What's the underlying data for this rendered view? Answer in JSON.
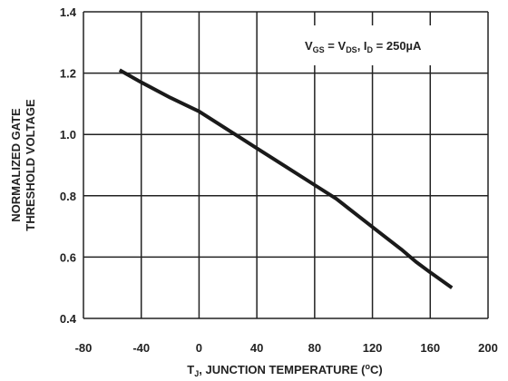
{
  "chart_data": {
    "type": "line",
    "grid": true,
    "xlim": [
      -80,
      200
    ],
    "ylim": [
      0.4,
      1.4
    ],
    "x_ticks": [
      -80,
      -40,
      0,
      40,
      80,
      120,
      160,
      200
    ],
    "y_ticks": [
      0.4,
      0.6,
      0.8,
      1.0,
      1.2,
      1.4
    ],
    "x_tick_labels": [
      "-80",
      "-40",
      "0",
      "40",
      "80",
      "120",
      "160",
      "200"
    ],
    "y_tick_labels": [
      "0.4",
      "0.6",
      "0.8",
      "1.0",
      "1.2",
      "1.4"
    ],
    "xlabel": {
      "main": "T",
      "sub": "J",
      "rest": ", JUNCTION TEMPERATURE (",
      "sup": "o",
      "end": "C)"
    },
    "ylabel": {
      "line1": "NORMALIZED GATE",
      "line2": "THRESHOLD VOLTAGE"
    },
    "legend": {
      "placement": "top-right",
      "parts": [
        {
          "text": "V",
          "style": "normal"
        },
        {
          "text": "GS",
          "style": "sub"
        },
        {
          "text": " = V",
          "style": "normal"
        },
        {
          "text": "DS",
          "style": "sub"
        },
        {
          "text": ", I",
          "style": "normal"
        },
        {
          "text": "D",
          "style": "sub"
        },
        {
          "text": " = 250µA",
          "style": "normal"
        }
      ]
    },
    "series": [
      {
        "color": "#1a1a1a",
        "x": [
          -55,
          -40,
          -20,
          0,
          25,
          40,
          60,
          80,
          95,
          110,
          125,
          140,
          150,
          160,
          175
        ],
        "y": [
          1.21,
          1.17,
          1.12,
          1.075,
          1.0,
          0.955,
          0.895,
          0.835,
          0.79,
          0.735,
          0.68,
          0.625,
          0.585,
          0.55,
          0.5
        ]
      }
    ]
  }
}
